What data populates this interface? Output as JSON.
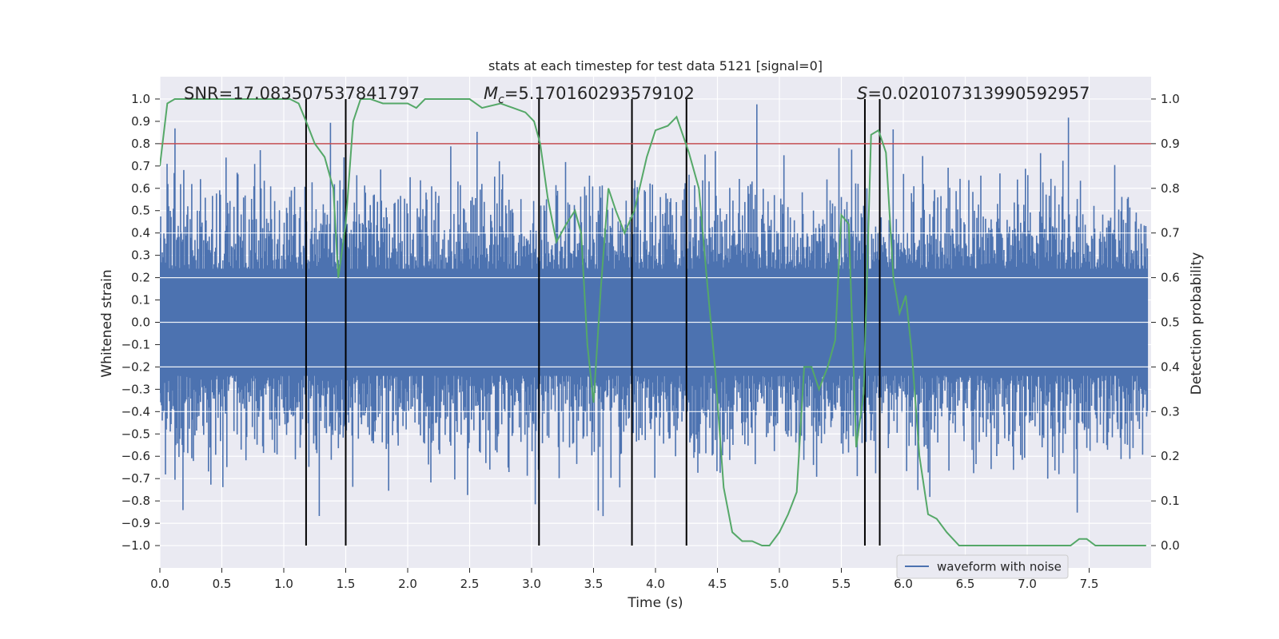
{
  "chart_data": {
    "type": "line",
    "title": "stats at each timestep for test data 5121 [signal=0]",
    "xlabel": "Time (s)",
    "ylabel": "Whitened strain",
    "y2label": "Detection probability",
    "xlim": [
      0.0,
      8.0
    ],
    "ylim": [
      -1.1,
      1.1
    ],
    "y2lim": [
      -0.05,
      1.05
    ],
    "x_ticks": [
      0.0,
      0.5,
      1.0,
      1.5,
      2.0,
      2.5,
      3.0,
      3.5,
      4.0,
      4.5,
      5.0,
      5.5,
      6.0,
      6.5,
      7.0,
      7.5
    ],
    "y_ticks": [
      -1.0,
      -0.9,
      -0.8,
      -0.7,
      -0.6,
      -0.5,
      -0.4,
      -0.3,
      -0.2,
      -0.1,
      0.0,
      0.1,
      0.2,
      0.3,
      0.4,
      0.5,
      0.6,
      0.7,
      0.8,
      0.9,
      1.0
    ],
    "y2_ticks": [
      0.0,
      0.1,
      0.2,
      0.3,
      0.4,
      0.5,
      0.6,
      0.7,
      0.8,
      0.9,
      1.0
    ],
    "annotations": {
      "snr": "SNR=17.083507537841797",
      "mc_symbol": "M",
      "mc_sub": "c",
      "mc_value": "=5.170160293579102",
      "s_symbol": "S",
      "s_value": "=0.020107313990592957"
    },
    "legend": {
      "entry": "waveform with noise",
      "placement": "lower-right"
    },
    "threshold": 0.8,
    "vertical_lines": [
      1.18,
      1.5,
      3.06,
      3.81,
      4.25,
      5.69,
      5.81
    ],
    "vertical_lines_range": [
      -1.0,
      1.0
    ],
    "series": [
      {
        "name": "waveform with noise",
        "axis": "left",
        "color": "#4c72b0",
        "noise_sigma": 0.2,
        "noise_cap": 1.0,
        "noise_seed": 5121
      },
      {
        "name": "detection probability",
        "axis": "right",
        "color": "#55a868",
        "x": [
          0.0,
          0.06,
          0.12,
          0.2,
          0.3,
          0.5,
          0.7,
          0.9,
          1.05,
          1.12,
          1.18,
          1.25,
          1.33,
          1.4,
          1.44,
          1.5,
          1.56,
          1.62,
          1.7,
          1.8,
          1.9,
          2.0,
          2.07,
          2.14,
          2.3,
          2.5,
          2.6,
          2.75,
          2.85,
          2.95,
          3.02,
          3.07,
          3.13,
          3.2,
          3.28,
          3.35,
          3.4,
          3.45,
          3.5,
          3.56,
          3.62,
          3.68,
          3.75,
          3.83,
          3.93,
          4.0,
          4.1,
          4.17,
          4.22,
          4.27,
          4.35,
          4.42,
          4.48,
          4.55,
          4.62,
          4.7,
          4.78,
          4.86,
          4.92,
          5.0,
          5.07,
          5.14,
          5.2,
          5.26,
          5.32,
          5.39,
          5.45,
          5.5,
          5.56,
          5.62,
          5.68,
          5.74,
          5.8,
          5.86,
          5.92,
          5.97,
          6.02,
          6.07,
          6.13,
          6.2,
          6.27,
          6.35,
          6.45,
          6.55,
          6.7,
          7.0,
          7.2,
          7.35,
          7.42,
          7.48,
          7.55,
          7.7,
          7.8,
          7.96
        ],
        "y": [
          0.85,
          0.99,
          1.0,
          1.0,
          1.0,
          1.0,
          1.0,
          1.0,
          1.0,
          0.99,
          0.95,
          0.9,
          0.87,
          0.8,
          0.6,
          0.72,
          0.95,
          1.0,
          1.0,
          0.99,
          0.99,
          0.99,
          0.98,
          1.0,
          1.0,
          1.0,
          0.98,
          0.99,
          0.98,
          0.97,
          0.95,
          0.9,
          0.78,
          0.68,
          0.72,
          0.75,
          0.7,
          0.45,
          0.32,
          0.58,
          0.8,
          0.75,
          0.7,
          0.75,
          0.87,
          0.93,
          0.94,
          0.96,
          0.92,
          0.88,
          0.8,
          0.58,
          0.4,
          0.13,
          0.03,
          0.01,
          0.01,
          0.0,
          0.0,
          0.03,
          0.07,
          0.12,
          0.4,
          0.4,
          0.35,
          0.4,
          0.46,
          0.74,
          0.72,
          0.22,
          0.34,
          0.92,
          0.93,
          0.88,
          0.6,
          0.52,
          0.56,
          0.43,
          0.2,
          0.07,
          0.06,
          0.03,
          0.0,
          0.0,
          0.0,
          0.0,
          0.0,
          0.0,
          0.015,
          0.015,
          0.0,
          0.0,
          0.0,
          0.0
        ]
      }
    ]
  },
  "colors": {
    "plot_bg": "#eaeaf2",
    "grid": "#ffffff",
    "text": "#262626",
    "vertical_line": "#000000",
    "threshold_line": "#c44e52"
  }
}
